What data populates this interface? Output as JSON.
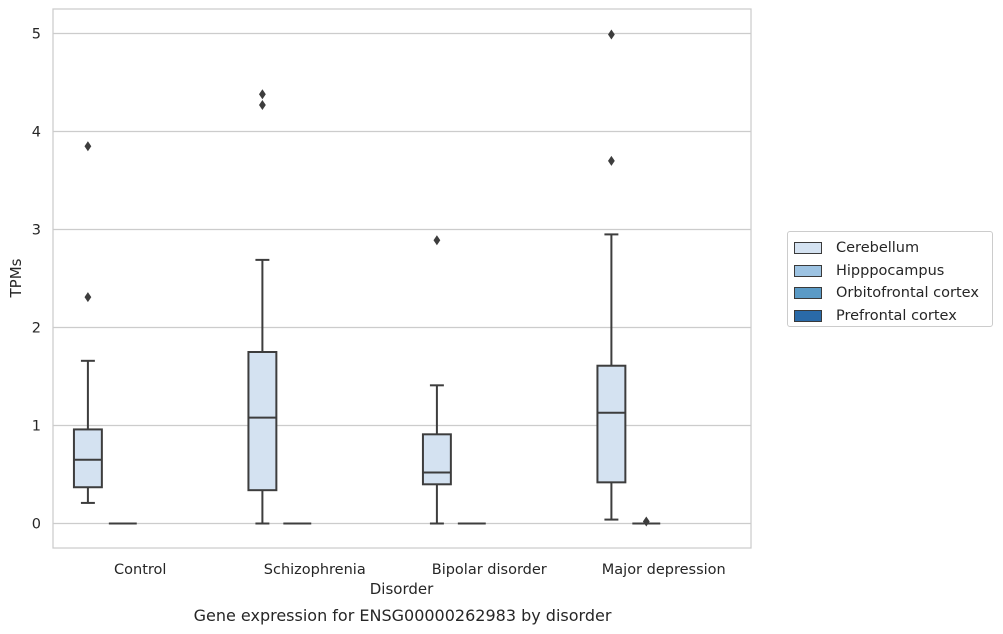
{
  "chart_data": {
    "type": "boxplot",
    "categories": [
      "Control",
      "Schizophrenia",
      "Bipolar disorder",
      "Major depression"
    ],
    "xlabel": "Disorder",
    "ylabel": "TPMs",
    "ylim": [
      -0.25,
      5.25
    ],
    "yticks": [
      0,
      1,
      2,
      3,
      4,
      5
    ],
    "grid": true,
    "legend_position": "right",
    "series": [
      {
        "name": "Cerebellum",
        "color": "#d4e2f1",
        "boxes": [
          {
            "category": "Control",
            "whisker_low": 0.21,
            "q1": 0.37,
            "median": 0.65,
            "q3": 0.96,
            "whisker_high": 1.66,
            "outliers": [
              2.31,
              3.85
            ]
          },
          {
            "category": "Schizophrenia",
            "whisker_low": 0.0,
            "q1": 0.34,
            "median": 1.08,
            "q3": 1.75,
            "whisker_high": 2.69,
            "outliers": [
              4.27,
              4.38
            ]
          },
          {
            "category": "Bipolar disorder",
            "whisker_low": 0.0,
            "q1": 0.4,
            "median": 0.52,
            "q3": 0.91,
            "whisker_high": 1.41,
            "outliers": [
              2.89
            ]
          },
          {
            "category": "Major depression",
            "whisker_low": 0.04,
            "q1": 0.42,
            "median": 1.13,
            "q3": 1.61,
            "whisker_high": 2.95,
            "outliers": [
              3.7,
              4.99
            ]
          }
        ]
      },
      {
        "name": "Hipppocampus",
        "color": "#9dc3e2",
        "boxes": [
          {
            "category": "Control",
            "whisker_low": 0,
            "q1": 0,
            "median": 0,
            "q3": 0,
            "whisker_high": 0,
            "outliers": []
          },
          {
            "category": "Schizophrenia",
            "whisker_low": 0,
            "q1": 0,
            "median": 0,
            "q3": 0,
            "whisker_high": 0,
            "outliers": []
          },
          {
            "category": "Bipolar disorder",
            "whisker_low": 0,
            "q1": 0,
            "median": 0,
            "q3": 0,
            "whisker_high": 0,
            "outliers": []
          },
          {
            "category": "Major depression",
            "whisker_low": 0,
            "q1": 0,
            "median": 0,
            "q3": 0,
            "whisker_high": 0,
            "outliers": [
              0.02
            ]
          }
        ]
      },
      {
        "name": "Orbitofrontal cortex",
        "color": "#5a9ac6",
        "boxes": []
      },
      {
        "name": "Prefrontal cortex",
        "color": "#2a6aa8",
        "boxes": []
      }
    ]
  },
  "caption": "Gene expression for ENSG00000262983 by disorder"
}
